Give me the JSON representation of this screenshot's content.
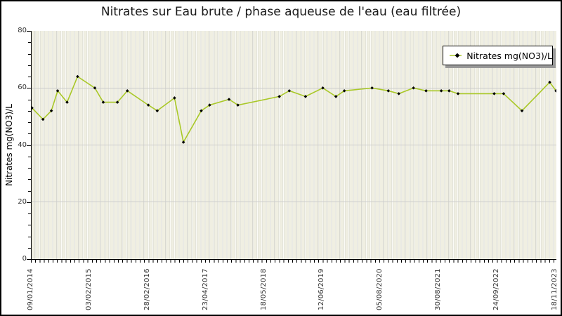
{
  "title": "Nitrates sur Eau brute / phase aqueuse de l'eau (eau filtrée)",
  "legend": {
    "label": "Nitrates mg(NO3)/L"
  },
  "y_axis": {
    "title": "Nitrates mg(NO3)/L",
    "tick_labels": [
      "0",
      "20",
      "40",
      "60",
      "80"
    ],
    "range": [
      0,
      80
    ],
    "major_step": 20,
    "minor_step": 4
  },
  "x_axis": {
    "tick_labels": [
      "09/01/2014",
      "03/02/2015",
      "28/02/2016",
      "23/04/2017",
      "18/05/2018",
      "12/06/2019",
      "05/08/2020",
      "30/08/2021",
      "24/09/2022",
      "18/11/2023"
    ]
  },
  "chart_data": {
    "type": "line",
    "title": "Nitrates sur Eau brute / phase aqueuse de l'eau (eau filtrée)",
    "ylabel": "Nitrates mg(NO3)/L",
    "ylim": [
      0,
      80
    ],
    "grid": "horizontal-major, vertical-monthly-bands",
    "legend_position": "top-right-inside",
    "series": [
      {
        "name": "Nitrates mg(NO3)/L",
        "marker": "small-black-diamond",
        "x_frac": [
          0.0,
          0.021,
          0.037,
          0.049,
          0.067,
          0.087,
          0.12,
          0.136,
          0.163,
          0.182,
          0.222,
          0.239,
          0.272,
          0.289,
          0.323,
          0.339,
          0.376,
          0.393,
          0.472,
          0.491,
          0.522,
          0.555,
          0.58,
          0.596,
          0.649,
          0.68,
          0.7,
          0.728,
          0.752,
          0.781,
          0.796,
          0.813,
          0.882,
          0.9,
          0.935,
          0.988,
          1.0
        ],
        "values": [
          53,
          49,
          52,
          59,
          55,
          64,
          60,
          55,
          55,
          59,
          54,
          52,
          56.5,
          41,
          52,
          54,
          56,
          54,
          57,
          59,
          57,
          60,
          57,
          59,
          60,
          59,
          58,
          60,
          59,
          59,
          59,
          58,
          58,
          58,
          52,
          62,
          59
        ],
        "dates_estimated": true,
        "dates_approx": [
          "2014-01",
          "2014-03",
          "2014-05",
          "2014-07",
          "2014-09",
          "2014-11",
          "2015-03",
          "2015-05",
          "2015-08",
          "2015-10",
          "2016-03",
          "2016-05",
          "2016-09",
          "2016-11",
          "2017-03",
          "2017-05",
          "2017-09",
          "2017-11",
          "2018-09",
          "2018-11",
          "2019-03",
          "2019-06",
          "2019-09",
          "2019-11",
          "2020-06",
          "2020-09",
          "2020-12",
          "2021-03",
          "2021-06",
          "2021-09",
          "2021-11",
          "2022-01",
          "2022-09",
          "2022-11",
          "2023-03",
          "2023-10",
          "2023-11"
        ]
      }
    ]
  },
  "colors": {
    "line": "#a9c827",
    "marker": "#000000",
    "band_cream": "#f0efe2",
    "band_white": "#fbfbf7",
    "band_separator": "#d9d9d1",
    "gridline": "#cccccc",
    "axis": "#000000",
    "tick_text": "#333333",
    "legend_shadow": "#999999"
  }
}
